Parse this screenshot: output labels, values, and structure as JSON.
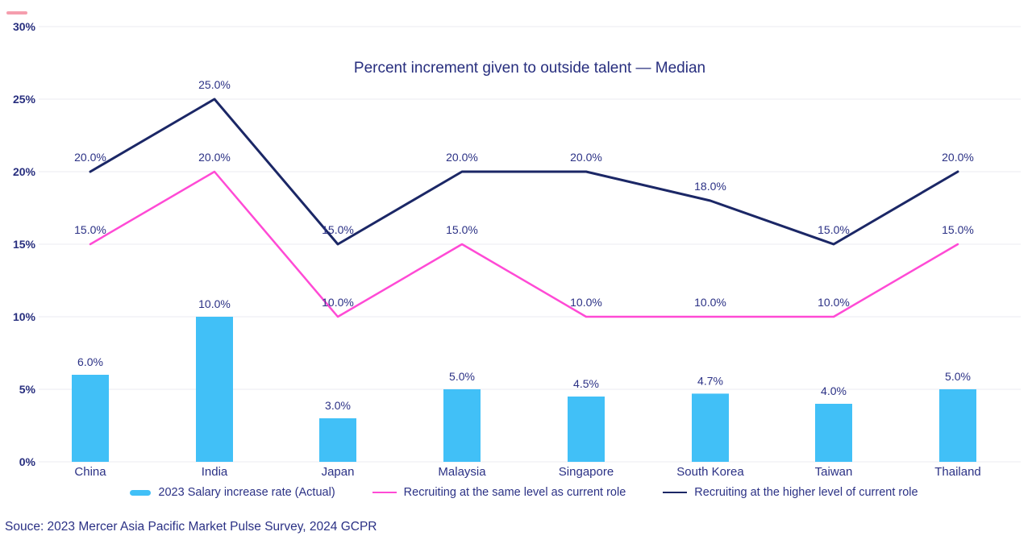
{
  "page": {
    "source": "Souce: 2023 Mercer Asia Pacific Market Pulse Survey, 2024 GCPR"
  },
  "colors": {
    "title_text": "#272E7E",
    "label_text": "#2B3185",
    "grid_line": "#F2F2F5",
    "bar_fill": "#41C0F7",
    "same_level_line": "#FF4AD5",
    "higher_level_line": "#1B2766",
    "brand_mark": "#E4002B"
  },
  "chart_data": {
    "type": "bar+line combo",
    "title": "Percent increment given to outside talent — Median",
    "categories": [
      "China",
      "India",
      "Japan",
      "Malaysia",
      "Singapore",
      "South Korea",
      "Taiwan",
      "Thailand"
    ],
    "series": [
      {
        "name": "2023 Salary increase rate (Actual)",
        "type": "bar",
        "color": "#41C0F7",
        "values": [
          6.0,
          10.0,
          3.0,
          5.0,
          4.5,
          4.7,
          4.0,
          5.0
        ],
        "labels": [
          "6.0%",
          "10.0%",
          "3.0%",
          "5.0%",
          "4.5%",
          "4.7%",
          "4.0%",
          "5.0%"
        ]
      },
      {
        "name": "Recruiting at the same level as current role",
        "type": "line",
        "color": "#FF4AD5",
        "values": [
          15.0,
          20.0,
          10.0,
          15.0,
          10.0,
          10.0,
          10.0,
          15.0
        ],
        "labels": [
          "15.0%",
          "20.0%",
          "10.0%",
          "15.0%",
          "10.0%",
          "10.0%",
          "10.0%",
          "15.0%"
        ]
      },
      {
        "name": "Recruiting at the higher level of current role",
        "type": "line",
        "color": "#1B2766",
        "values": [
          20.0,
          25.0,
          15.0,
          20.0,
          20.0,
          18.0,
          15.0,
          20.0
        ],
        "labels": [
          "20.0%",
          "25.0%",
          "15.0%",
          "20.0%",
          "20.0%",
          "18.0%",
          "15.0%",
          "20.0%"
        ]
      }
    ],
    "y_ticks": [
      "0%",
      "5%",
      "10%",
      "15%",
      "20%",
      "25%",
      "30%"
    ],
    "y_tick_values": [
      0,
      5,
      10,
      15,
      20,
      25,
      30
    ],
    "ylim": [
      0,
      30
    ],
    "grid": true,
    "legend_position": "bottom",
    "value_labels_shown": true
  }
}
